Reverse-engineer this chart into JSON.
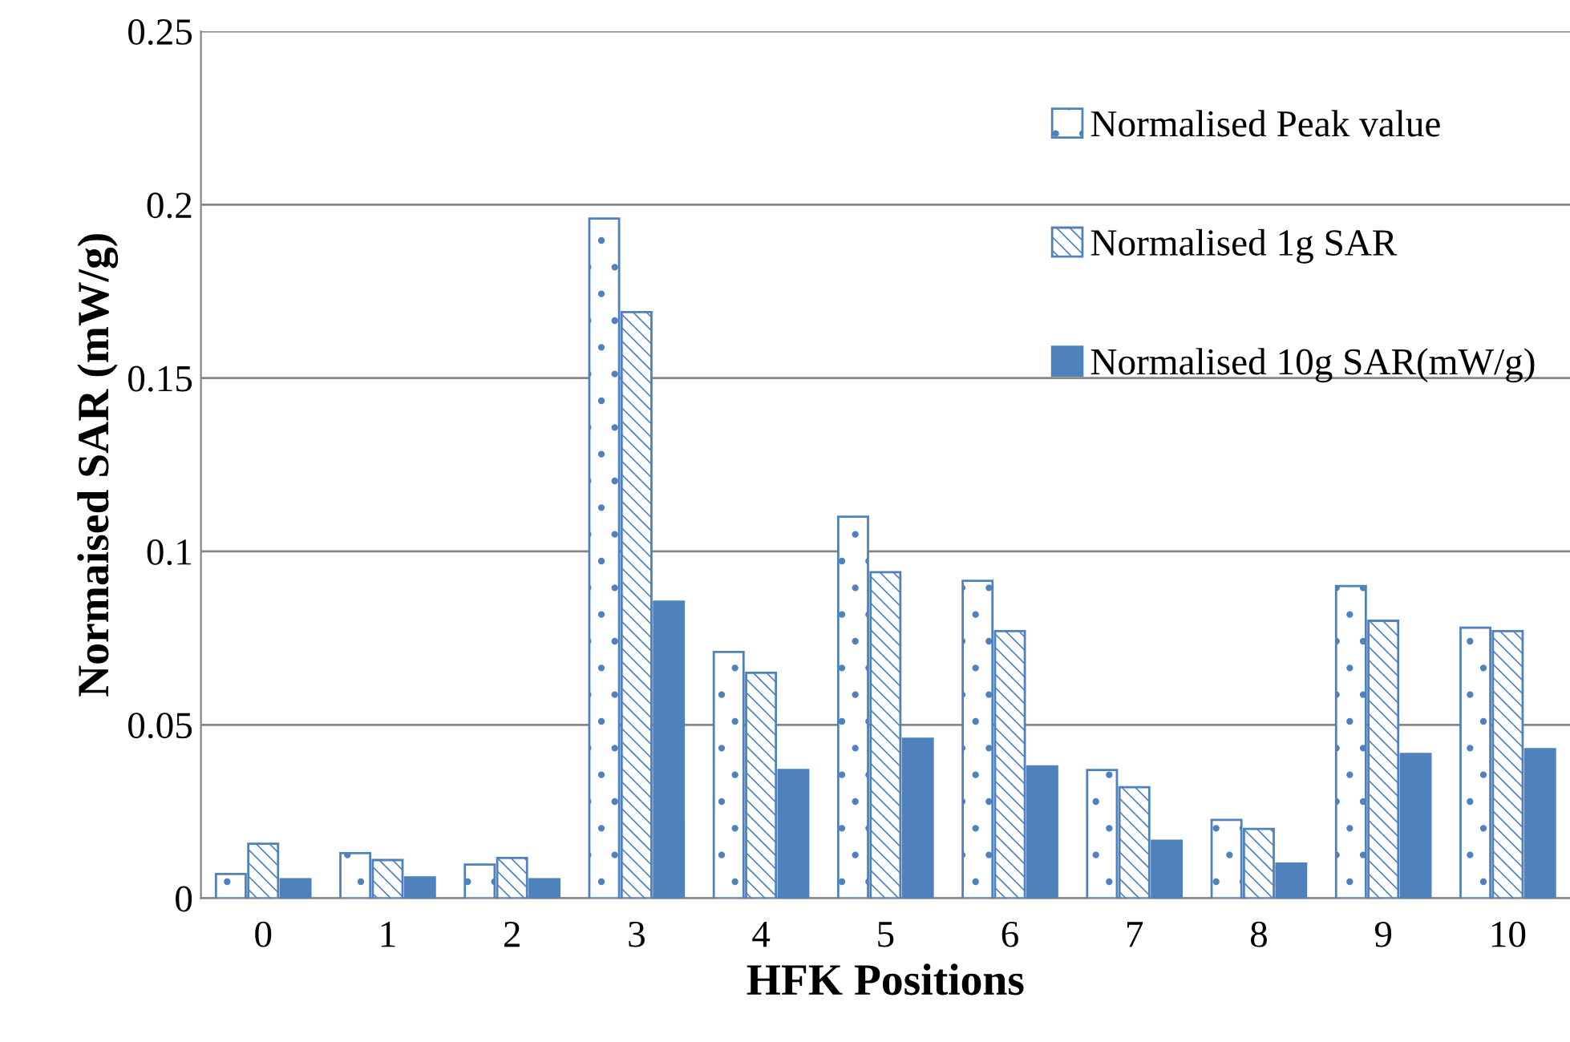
{
  "chart_data": {
    "type": "bar",
    "xlabel": "HFK Positions",
    "ylabel": "Normaised SAR (mW/g)",
    "categories": [
      "0",
      "1",
      "2",
      "3",
      "4",
      "5",
      "6",
      "7",
      "8",
      "9",
      "10"
    ],
    "series": [
      {
        "name": "Normalised Peak value",
        "color": "#4f81bd",
        "values": [
          0.007,
          0.013,
          0.0097,
          0.196,
          0.071,
          0.11,
          0.0915,
          0.037,
          0.0226,
          0.09,
          0.078
        ]
      },
      {
        "name": "Normalised 1g SAR",
        "color": "#4f81bd",
        "values": [
          0.0157,
          0.011,
          0.0116,
          0.169,
          0.065,
          0.094,
          0.077,
          0.032,
          0.02,
          0.08,
          0.077
        ]
      },
      {
        "name": "Normalised 10g SAR(mW/g)",
        "color": "#4f81bd",
        "values": [
          0.0055,
          0.006,
          0.0055,
          0.0855,
          0.037,
          0.046,
          0.038,
          0.0166,
          0.01,
          0.0416,
          0.043
        ]
      }
    ],
    "ylim": [
      0,
      0.25
    ],
    "yticks": [
      0,
      0.05,
      0.1,
      0.15,
      0.2,
      0.25
    ],
    "grid": "y",
    "legend": "top right"
  }
}
